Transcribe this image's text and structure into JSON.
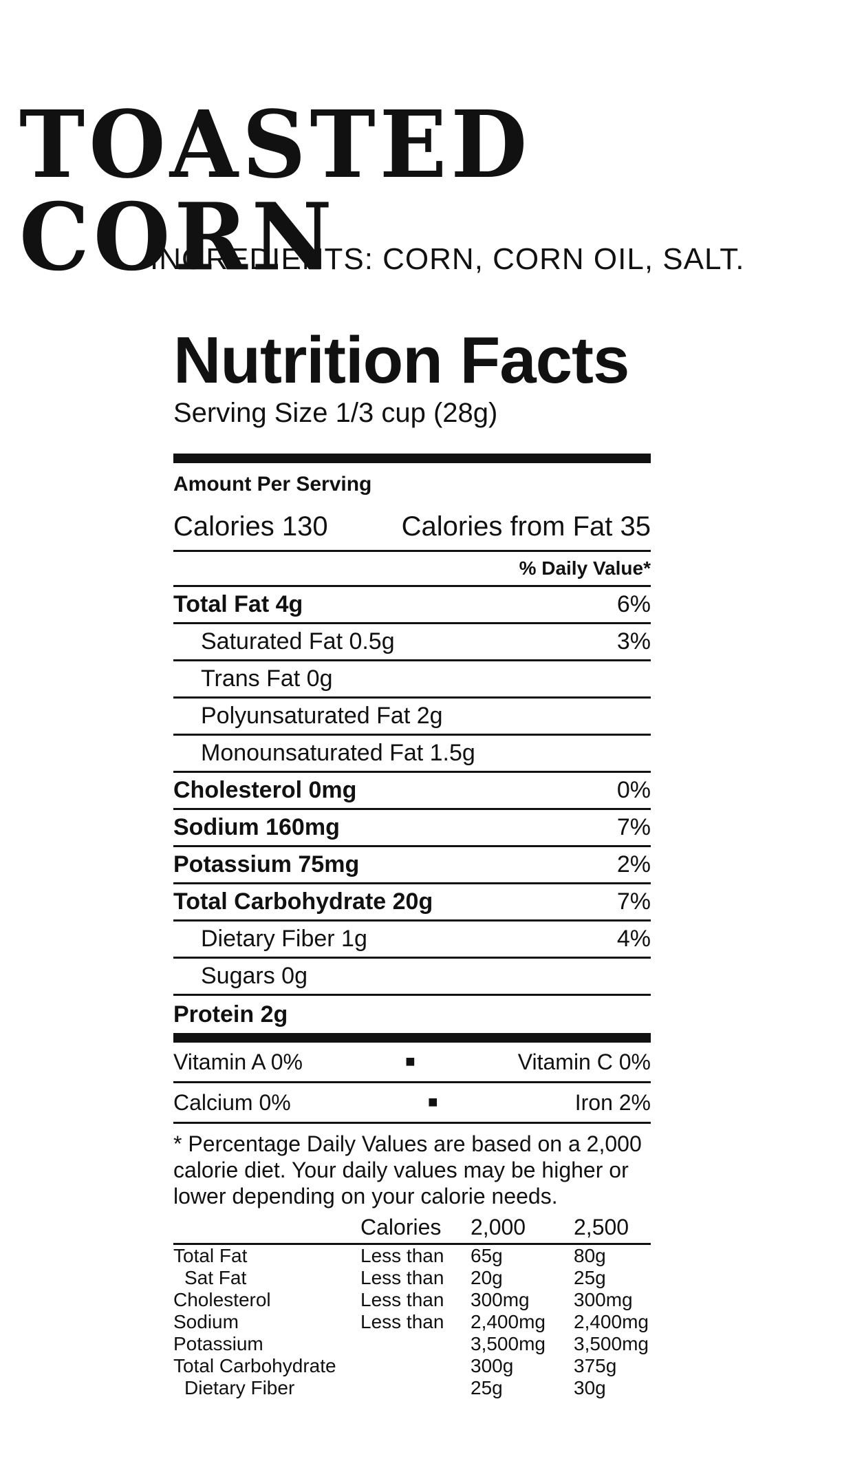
{
  "product": {
    "name": "TOASTED CORN",
    "ingredients": "INGREDIENTS: CORN, CORN OIL, SALT."
  },
  "label": {
    "title": "Nutrition Facts",
    "serving_size": "Serving Size 1/3 cup (28g)",
    "amount_per_serving": "Amount Per Serving",
    "calories": "Calories 130",
    "calories_from_fat": "Calories from Fat 35",
    "daily_value_header": "% Daily Value*",
    "nutrients": [
      {
        "label": "Total Fat 4g",
        "dv": "6%"
      },
      {
        "label": "Saturated Fat 0.5g",
        "dv": "3%"
      },
      {
        "label": "Trans Fat 0g",
        "dv": ""
      },
      {
        "label": "Polyunsaturated Fat 2g",
        "dv": ""
      },
      {
        "label": "Monounsaturated Fat 1.5g",
        "dv": ""
      },
      {
        "label": "Cholesterol 0mg",
        "dv": "0%"
      },
      {
        "label": "Sodium 160mg",
        "dv": "7%"
      },
      {
        "label": "Potassium 75mg",
        "dv": "2%"
      },
      {
        "label": "Total Carbohydrate 20g",
        "dv": "7%"
      },
      {
        "label": "Dietary Fiber 1g",
        "dv": "4%"
      },
      {
        "label": "Sugars 0g",
        "dv": ""
      },
      {
        "label": "Protein 2g",
        "dv": ""
      }
    ],
    "vitamins": [
      {
        "left": "Vitamin A 0%",
        "right": "Vitamin C 0%"
      },
      {
        "left": "Calcium 0%",
        "right": "Iron 2%"
      }
    ],
    "footnote": "* Percentage Daily Values are based on a 2,000 calorie diet. Your daily values may be higher or lower depending on your calorie needs.",
    "footer_table": {
      "header": [
        "",
        "Calories",
        "2,000",
        "2,500"
      ],
      "rows": [
        [
          "Total Fat",
          "Less than",
          "65g",
          "80g"
        ],
        [
          "Sat Fat",
          "Less than",
          "20g",
          "25g"
        ],
        [
          "Cholesterol",
          "Less than",
          "300mg",
          "300mg"
        ],
        [
          "Sodium",
          "Less than",
          "2,400mg",
          "2,400mg"
        ],
        [
          "Potassium",
          "",
          "3,500mg",
          "3,500mg"
        ],
        [
          "Total Carbohydrate",
          "",
          "300g",
          "375g"
        ],
        [
          "Dietary Fiber",
          "",
          "25g",
          "30g"
        ]
      ]
    }
  }
}
